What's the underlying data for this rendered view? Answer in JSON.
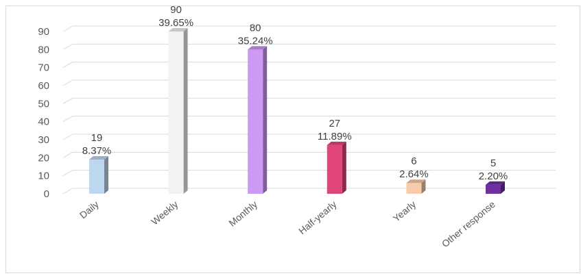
{
  "chart_data": {
    "type": "bar",
    "style": "3d-column",
    "categories": [
      "Daily",
      "Weekly",
      "Monthly",
      "Half-yearly",
      "Yearly",
      "Other response"
    ],
    "values": [
      19,
      90,
      80,
      27,
      6,
      5
    ],
    "percent_labels": [
      "8.37%",
      "39.65%",
      "35.24%",
      "11.89%",
      "2.64%",
      "2.20%"
    ],
    "colors": [
      "#bdd7ee",
      "#f2f2f2",
      "#cc99f5",
      "#e0457b",
      "#f8cbad",
      "#7030a0"
    ],
    "title": "",
    "xlabel": "",
    "ylabel": "",
    "ylim": [
      0,
      90
    ],
    "yticks": [
      0,
      10,
      20,
      30,
      40,
      50,
      60,
      70,
      80,
      90
    ],
    "grid": true,
    "legend": "none"
  }
}
